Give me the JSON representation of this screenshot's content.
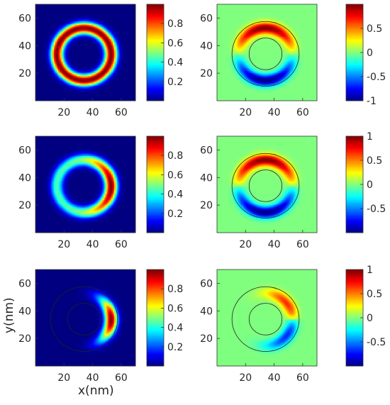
{
  "chart_data": [
    {
      "type": "heatmap",
      "panel": "row1-left",
      "description_values": {
        "field": "normalized magnitude",
        "shape": "full ring",
        "ring_inner_radius": 15,
        "ring_outer_radius": 23,
        "center": [
          34,
          34
        ],
        "peak": 1.0
      },
      "xlim": [
        0,
        70
      ],
      "ylim": [
        0,
        70
      ],
      "xticks": [
        20,
        40,
        60
      ],
      "yticks": [
        20,
        40,
        60
      ],
      "xtick_labels": [
        "20",
        "40",
        "60"
      ],
      "ytick_labels": [
        "20",
        "40",
        "60"
      ],
      "colorbar": {
        "range": [
          0,
          1
        ],
        "ticks": [
          0.2,
          0.4,
          0.6,
          0.8
        ],
        "tick_labels": [
          "0.2",
          "0.4",
          "0.6",
          "0.8"
        ],
        "colormap": "jet"
      }
    },
    {
      "type": "heatmap",
      "panel": "row1-right",
      "description_values": {
        "field": "signed component",
        "shape": "ring, positive upper half, negative lower half",
        "center": [
          34,
          34
        ],
        "peak": 0.95,
        "trough": -0.95
      },
      "xlim": [
        0,
        70
      ],
      "ylim": [
        0,
        70
      ],
      "xticks": [
        20,
        40,
        60
      ],
      "yticks": [
        20,
        40,
        60
      ],
      "xtick_labels": [
        "20",
        "40",
        "60"
      ],
      "ytick_labels": [
        "20",
        "40",
        "60"
      ],
      "colorbar": {
        "range": [
          -1,
          1
        ],
        "ticks": [
          -1,
          -0.5,
          0,
          0.5
        ],
        "tick_labels": [
          "-1",
          "-0.5",
          "0",
          "0.5"
        ],
        "colormap": "jet"
      }
    },
    {
      "type": "heatmap",
      "panel": "row2-left",
      "description_values": {
        "field": "normalized magnitude",
        "shape": "ring with crescent maximum on right side",
        "center": [
          34,
          34
        ],
        "peak": 1.0
      },
      "xlim": [
        0,
        70
      ],
      "ylim": [
        0,
        70
      ],
      "xticks": [
        20,
        40,
        60
      ],
      "yticks": [
        20,
        40,
        60
      ],
      "xtick_labels": [
        "20",
        "40",
        "60"
      ],
      "ytick_labels": [
        "20",
        "40",
        "60"
      ],
      "colorbar": {
        "range": [
          0,
          1
        ],
        "ticks": [
          0.2,
          0.4,
          0.6,
          0.8
        ],
        "tick_labels": [
          "0.2",
          "0.4",
          "0.6",
          "0.8"
        ],
        "colormap": "jet"
      }
    },
    {
      "type": "heatmap",
      "panel": "row2-right",
      "description_values": {
        "field": "signed component",
        "shape": "ring, positive upper half, negative lower half",
        "center": [
          34,
          34
        ],
        "peak": 1.0,
        "trough": -0.95
      },
      "xlim": [
        0,
        70
      ],
      "ylim": [
        0,
        70
      ],
      "xticks": [
        20,
        40,
        60
      ],
      "yticks": [
        20,
        40,
        60
      ],
      "xtick_labels": [
        "20",
        "40",
        "60"
      ],
      "ytick_labels": [
        "20",
        "40",
        "60"
      ],
      "colorbar": {
        "range": [
          -1,
          1
        ],
        "ticks": [
          -0.5,
          0,
          0.5,
          1
        ],
        "tick_labels": [
          "-0.5",
          "0",
          "0.5",
          "1"
        ],
        "colormap": "jet"
      }
    },
    {
      "type": "heatmap",
      "panel": "row3-left",
      "description_values": {
        "field": "normalized magnitude",
        "shape": "localized crescent on right side of ring",
        "center": [
          34,
          34
        ],
        "peak": 1.0
      },
      "xlim": [
        0,
        70
      ],
      "ylim": [
        0,
        70
      ],
      "xticks": [
        20,
        40,
        60
      ],
      "yticks": [
        20,
        40,
        60
      ],
      "xtick_labels": [
        "20",
        "40",
        "60"
      ],
      "ytick_labels": [
        "20",
        "40",
        "60"
      ],
      "xlabel": "x(nm)",
      "ylabel": "y(nm)",
      "colorbar": {
        "range": [
          0,
          1
        ],
        "ticks": [
          0.2,
          0.4,
          0.6,
          0.8
        ],
        "tick_labels": [
          "0.2",
          "0.4",
          "0.6",
          "0.8"
        ],
        "colormap": "jet"
      }
    },
    {
      "type": "heatmap",
      "panel": "row3-right",
      "description_values": {
        "field": "signed component",
        "shape": "upper-right positive lobe, lower-right negative lobe",
        "center": [
          34,
          34
        ],
        "peak": 1.0,
        "trough": -0.95
      },
      "xlim": [
        0,
        70
      ],
      "ylim": [
        0,
        70
      ],
      "xticks": [
        20,
        40,
        60
      ],
      "yticks": [
        20,
        40,
        60
      ],
      "xtick_labels": [
        "20",
        "40",
        "60"
      ],
      "ytick_labels": [
        "20",
        "40",
        "60"
      ],
      "colorbar": {
        "range": [
          -1,
          1
        ],
        "ticks": [
          -0.5,
          0,
          0.5,
          1
        ],
        "tick_labels": [
          "-0.5",
          "0",
          "0.5",
          "1"
        ],
        "colormap": "jet"
      }
    }
  ]
}
